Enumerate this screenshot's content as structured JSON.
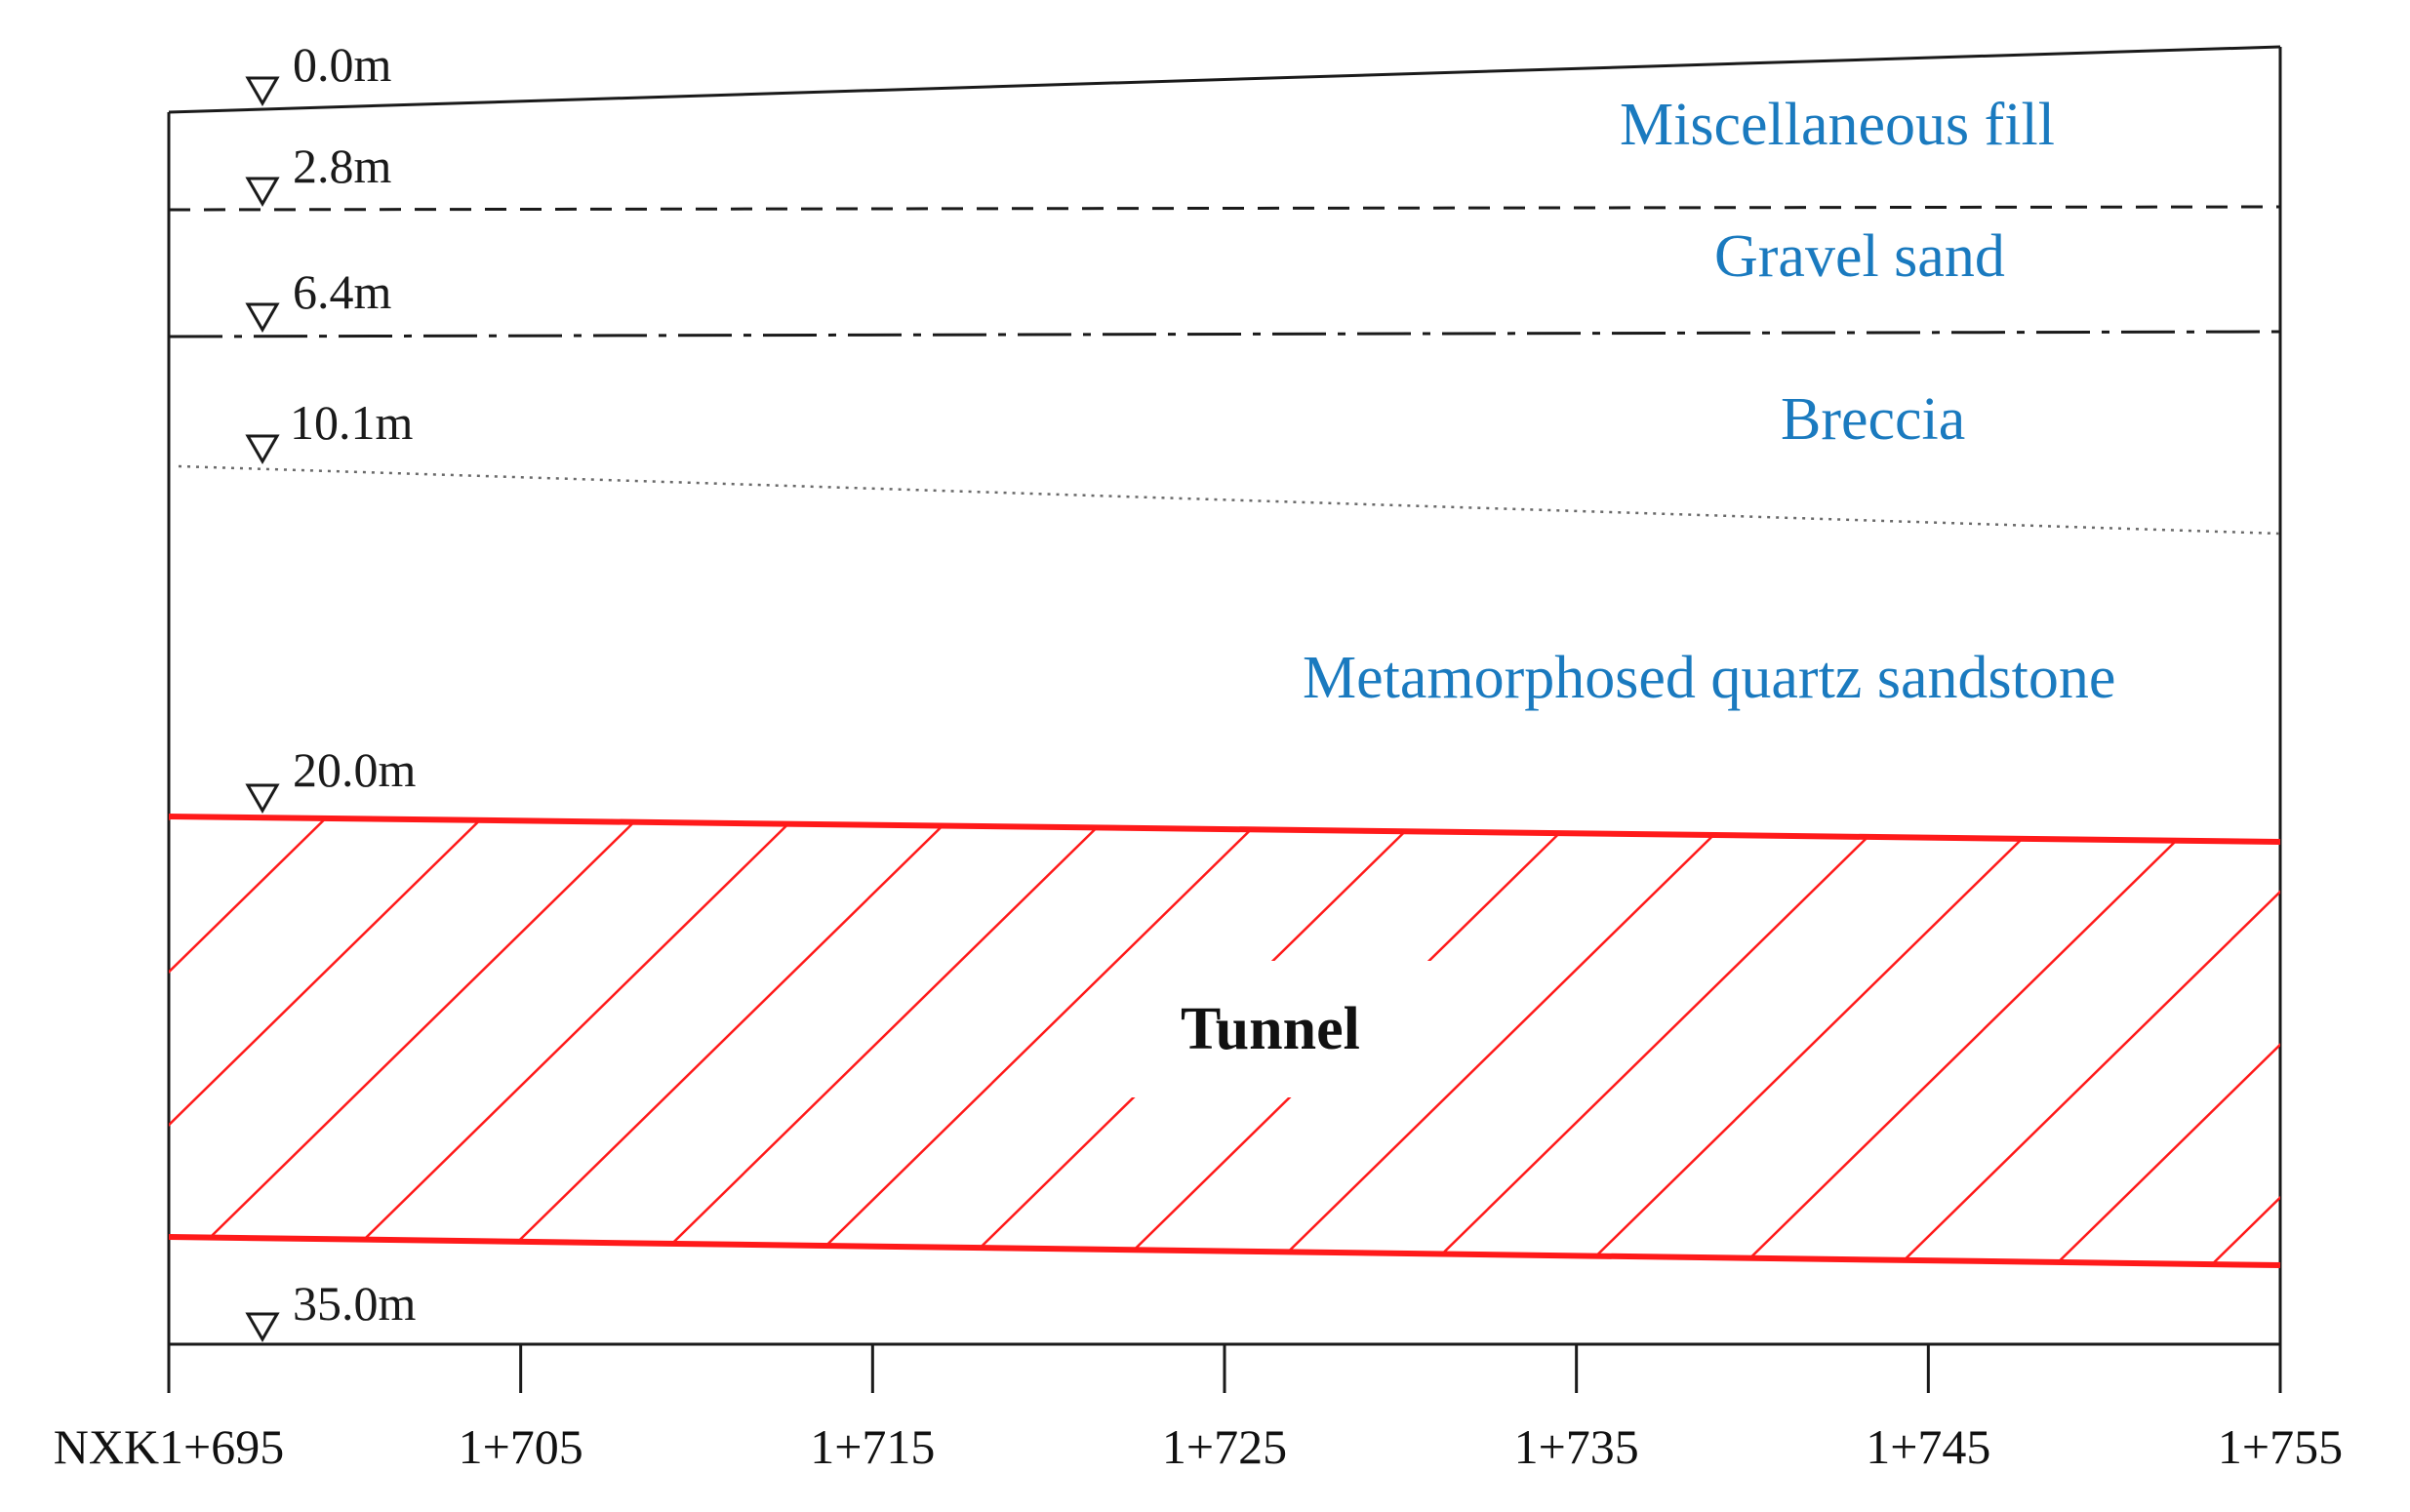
{
  "diagram": {
    "elevations": [
      "0.0m",
      "2.8m",
      "6.4m",
      "10.1m",
      "20.0m",
      "35.0m"
    ],
    "layers": {
      "fill": "Miscellaneous fill",
      "gravel": "Gravel sand",
      "breccia": "Breccia",
      "sandstone": "Metamorphosed quartz sandstone"
    },
    "tunnel_label": "Tunnel",
    "stations": [
      "NXK1+695",
      "1+705",
      "1+715",
      "1+725",
      "1+735",
      "1+745",
      "1+755"
    ],
    "colors": {
      "layer_text": "#1a7abf",
      "tunnel": "#ff1a1a",
      "line": "#1a1a1a"
    }
  }
}
